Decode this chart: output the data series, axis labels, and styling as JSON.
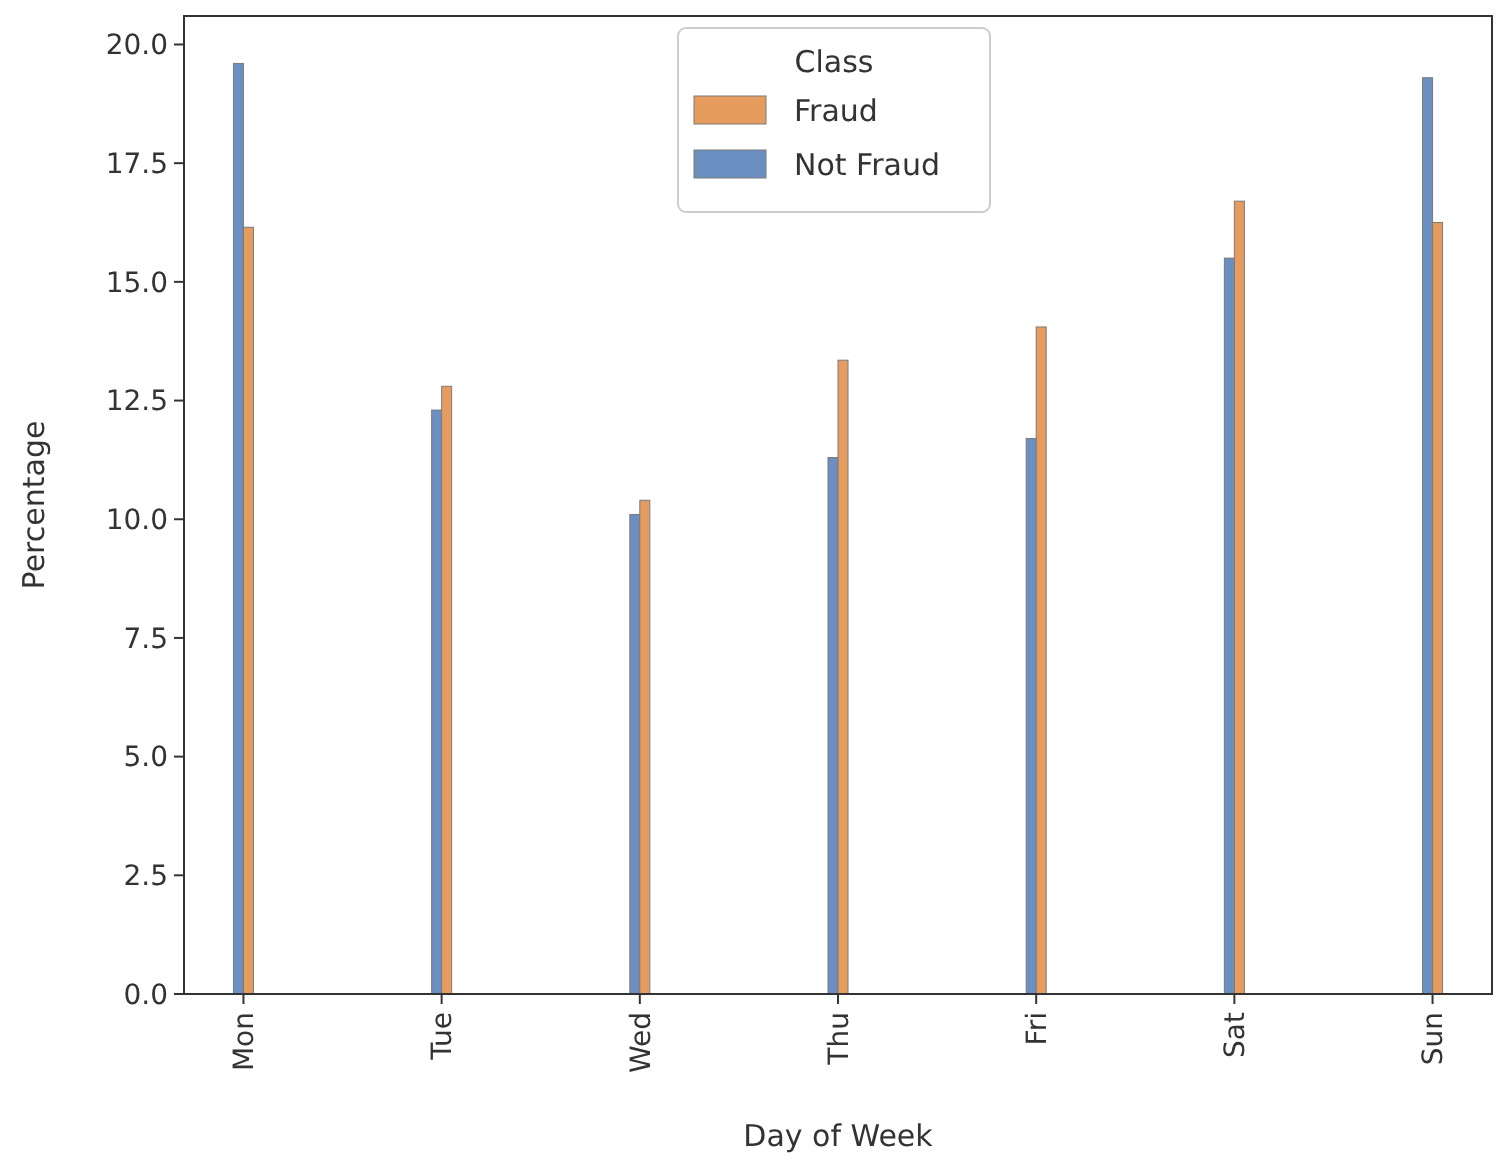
{
  "chart_data": {
    "type": "bar",
    "xlabel": "Day of Week",
    "ylabel": "Percentage",
    "legend_title": "Class",
    "categories": [
      "Mon",
      "Tue",
      "Wed",
      "Thu",
      "Fri",
      "Sat",
      "Sun"
    ],
    "series": [
      {
        "name": "Not Fraud",
        "color": "#6a8fc0",
        "values": [
          19.6,
          12.3,
          10.1,
          11.3,
          11.7,
          15.5,
          19.3
        ]
      },
      {
        "name": "Fraud",
        "color": "#e59c5e",
        "values": [
          16.15,
          12.8,
          10.4,
          13.35,
          14.05,
          16.7,
          16.25
        ]
      }
    ],
    "ylim": [
      0,
      20.6
    ],
    "yticks": [
      {
        "value": 0,
        "label": "0.0"
      },
      {
        "value": 2.5,
        "label": "2.5"
      },
      {
        "value": 5,
        "label": "5.0"
      },
      {
        "value": 7.5,
        "label": "7.5"
      },
      {
        "value": 10,
        "label": "10.0"
      },
      {
        "value": 12.5,
        "label": "12.5"
      },
      {
        "value": 15,
        "label": "15.0"
      },
      {
        "value": 17.5,
        "label": "17.5"
      },
      {
        "value": 20,
        "label": "20.0"
      }
    ],
    "legend": "top",
    "grid": false
  }
}
